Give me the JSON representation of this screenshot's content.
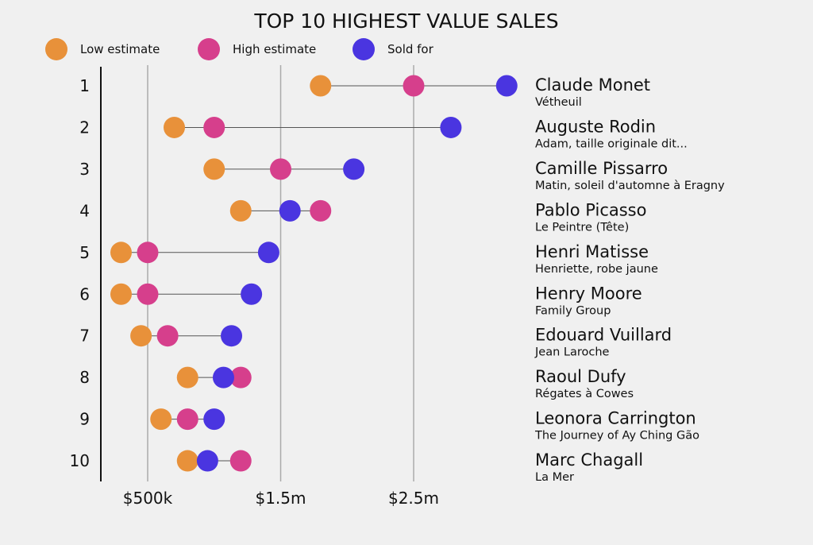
{
  "chart_data": {
    "type": "dumbbell",
    "title": "TOP 10 HIGHEST VALUE SALES",
    "legend_position": "top-left",
    "series": [
      {
        "key": "low",
        "name": "Low estimate",
        "color": "#E8913A"
      },
      {
        "key": "high",
        "name": "High estimate",
        "color": "#D63F8C"
      },
      {
        "key": "sold",
        "name": "Sold for",
        "color": "#4A35E0"
      }
    ],
    "x_unit": "millions USD",
    "xlim": [
      0.15,
      3.3
    ],
    "x_ticks": [
      {
        "value": 0.5,
        "label": "$500k"
      },
      {
        "value": 1.5,
        "label": "$1.5m"
      },
      {
        "value": 2.5,
        "label": "$2.5m"
      }
    ],
    "grid": "vertical",
    "rows": [
      {
        "rank": "1",
        "artist": "Claude Monet",
        "work": "Vétheuil",
        "low": 1.8,
        "high": 2.5,
        "sold": 3.2
      },
      {
        "rank": "2",
        "artist": "Auguste Rodin",
        "work": "Adam, taille originale dit...",
        "low": 0.7,
        "high": 1.0,
        "sold": 2.78
      },
      {
        "rank": "3",
        "artist": "Camille Pissarro",
        "work": "Matin, soleil d'automne à Eragny",
        "low": 1.0,
        "high": 1.5,
        "sold": 2.05
      },
      {
        "rank": "4",
        "artist": "Pablo Picasso",
        "work": "Le Peintre (Tête)",
        "low": 1.2,
        "high": 1.8,
        "sold": 1.57
      },
      {
        "rank": "5",
        "artist": "Henri Matisse",
        "work": "Henriette, robe jaune",
        "low": 0.3,
        "high": 0.5,
        "sold": 1.41
      },
      {
        "rank": "6",
        "artist": "Henry Moore",
        "work": "Family Group",
        "low": 0.3,
        "high": 0.5,
        "sold": 1.28
      },
      {
        "rank": "7",
        "artist": "Edouard Vuillard",
        "work": "Jean Laroche",
        "low": 0.45,
        "high": 0.65,
        "sold": 1.13
      },
      {
        "rank": "8",
        "artist": "Raoul Dufy",
        "work": "Régates à Cowes",
        "low": 0.8,
        "high": 1.2,
        "sold": 1.07
      },
      {
        "rank": "9",
        "artist": "Leonora Carrington",
        "work": "The Journey of Ay Ching Gão",
        "low": 0.6,
        "high": 0.8,
        "sold": 1.0
      },
      {
        "rank": "10",
        "artist": "Marc Chagall",
        "work": "La Mer",
        "low": 0.8,
        "high": 1.2,
        "sold": 0.95
      }
    ]
  }
}
